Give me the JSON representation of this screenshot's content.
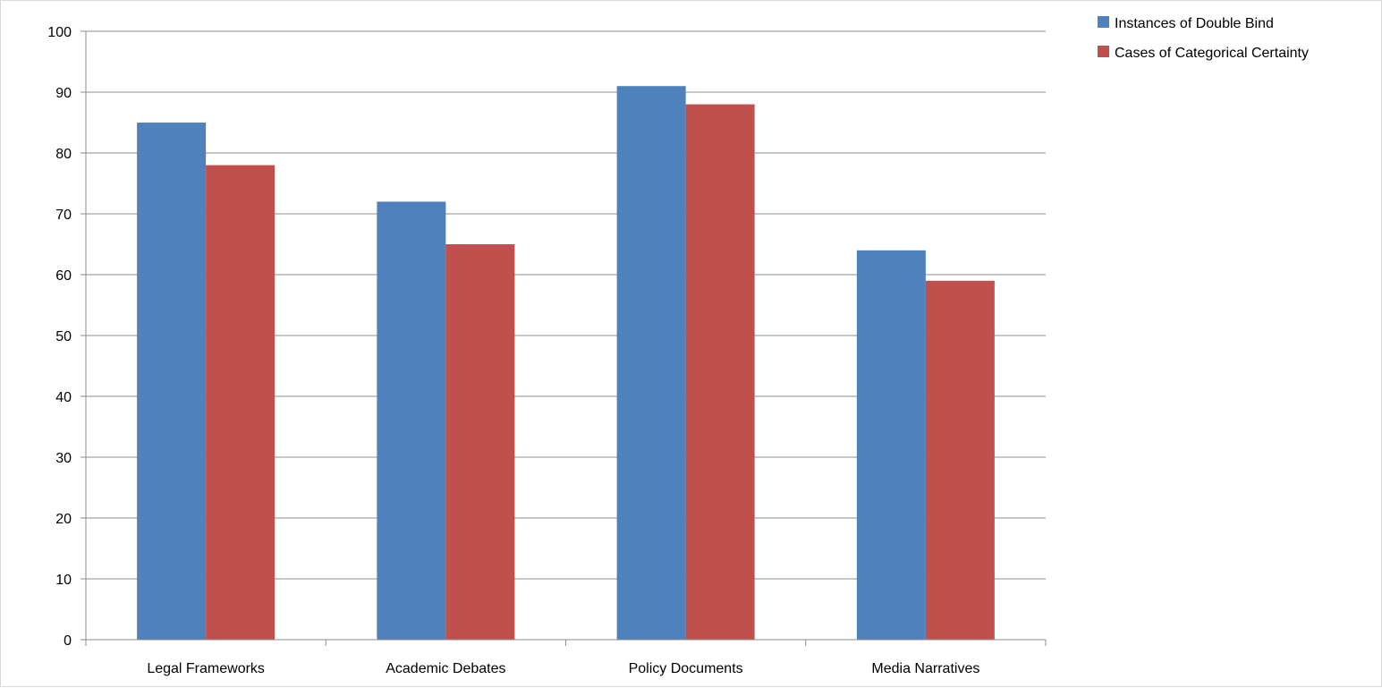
{
  "chart_data": {
    "type": "bar",
    "categories": [
      "Legal Frameworks",
      "Academic Debates",
      "Policy Documents",
      "Media Narratives"
    ],
    "series": [
      {
        "name": "Instances of Double Bind",
        "color": "#4f81bd",
        "values": [
          85,
          72,
          91,
          64
        ]
      },
      {
        "name": "Cases of Categorical Certainty",
        "color": "#c0504d",
        "values": [
          78,
          65,
          88,
          59
        ]
      }
    ],
    "ylim": [
      0,
      100
    ],
    "yticks": [
      0,
      10,
      20,
      30,
      40,
      50,
      60,
      70,
      80,
      90,
      100
    ],
    "grid": true,
    "legend_position": "top-right",
    "title": "",
    "xlabel": "",
    "ylabel": ""
  }
}
